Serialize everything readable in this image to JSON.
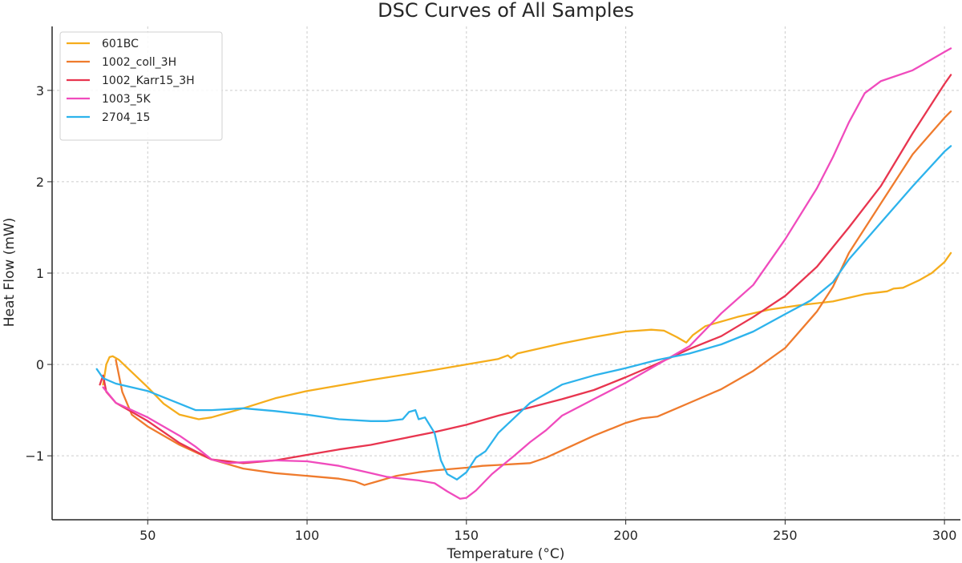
{
  "chart_data": {
    "type": "line",
    "title": "DSC Curves of All Samples",
    "xlabel": "Temperature (°C)",
    "ylabel": "Heat Flow (mW)",
    "xlim": [
      20,
      305
    ],
    "ylim": [
      -1.7,
      3.7
    ],
    "xticks": [
      50,
      100,
      150,
      200,
      250,
      300
    ],
    "yticks": [
      -1,
      0,
      1,
      2,
      3
    ],
    "ytick_labels": [
      "−1",
      "0",
      "1",
      "2",
      "3"
    ],
    "grid": true,
    "legend_position": "top-left",
    "series": [
      {
        "name": "601BC",
        "color": "#f5ad1c",
        "points": [
          [
            36,
            -0.22
          ],
          [
            37,
            0.0
          ],
          [
            38,
            0.08
          ],
          [
            39,
            0.09
          ],
          [
            41,
            0.05
          ],
          [
            44,
            -0.05
          ],
          [
            50,
            -0.25
          ],
          [
            55,
            -0.43
          ],
          [
            60,
            -0.55
          ],
          [
            66,
            -0.6
          ],
          [
            70,
            -0.58
          ],
          [
            75,
            -0.53
          ],
          [
            80,
            -0.48
          ],
          [
            90,
            -0.37
          ],
          [
            100,
            -0.29
          ],
          [
            120,
            -0.17
          ],
          [
            140,
            -0.06
          ],
          [
            160,
            0.06
          ],
          [
            163,
            0.1
          ],
          [
            164,
            0.07
          ],
          [
            166,
            0.12
          ],
          [
            180,
            0.23
          ],
          [
            190,
            0.3
          ],
          [
            200,
            0.36
          ],
          [
            208,
            0.38
          ],
          [
            212,
            0.37
          ],
          [
            216,
            0.3
          ],
          [
            219,
            0.24
          ],
          [
            221,
            0.32
          ],
          [
            225,
            0.42
          ],
          [
            235,
            0.52
          ],
          [
            245,
            0.6
          ],
          [
            255,
            0.65
          ],
          [
            265,
            0.69
          ],
          [
            275,
            0.77
          ],
          [
            282,
            0.8
          ],
          [
            284,
            0.83
          ],
          [
            287,
            0.84
          ],
          [
            292,
            0.92
          ],
          [
            296,
            1.0
          ],
          [
            300,
            1.12
          ],
          [
            302,
            1.22
          ]
        ]
      },
      {
        "name": "1002_coll_3H",
        "color": "#ef7b2d",
        "points": [
          [
            40,
            0.05
          ],
          [
            42,
            -0.3
          ],
          [
            45,
            -0.55
          ],
          [
            50,
            -0.68
          ],
          [
            60,
            -0.88
          ],
          [
            70,
            -1.04
          ],
          [
            80,
            -1.14
          ],
          [
            90,
            -1.19
          ],
          [
            100,
            -1.22
          ],
          [
            110,
            -1.25
          ],
          [
            115,
            -1.28
          ],
          [
            118,
            -1.32
          ],
          [
            122,
            -1.28
          ],
          [
            128,
            -1.22
          ],
          [
            135,
            -1.18
          ],
          [
            140,
            -1.16
          ],
          [
            150,
            -1.13
          ],
          [
            155,
            -1.11
          ],
          [
            160,
            -1.1
          ],
          [
            170,
            -1.08
          ],
          [
            175,
            -1.02
          ],
          [
            180,
            -0.94
          ],
          [
            190,
            -0.78
          ],
          [
            200,
            -0.64
          ],
          [
            205,
            -0.59
          ],
          [
            210,
            -0.57
          ],
          [
            220,
            -0.42
          ],
          [
            230,
            -0.27
          ],
          [
            240,
            -0.07
          ],
          [
            250,
            0.18
          ],
          [
            260,
            0.58
          ],
          [
            265,
            0.85
          ],
          [
            270,
            1.22
          ],
          [
            280,
            1.76
          ],
          [
            290,
            2.3
          ],
          [
            300,
            2.7
          ],
          [
            302,
            2.77
          ]
        ]
      },
      {
        "name": "1002_Karr15_3H",
        "color": "#e8354f",
        "points": [
          [
            35,
            -0.22
          ],
          [
            36,
            -0.12
          ],
          [
            37,
            -0.3
          ],
          [
            40,
            -0.42
          ],
          [
            50,
            -0.62
          ],
          [
            60,
            -0.86
          ],
          [
            70,
            -1.04
          ],
          [
            80,
            -1.08
          ],
          [
            90,
            -1.05
          ],
          [
            100,
            -0.99
          ],
          [
            110,
            -0.93
          ],
          [
            120,
            -0.88
          ],
          [
            130,
            -0.81
          ],
          [
            140,
            -0.74
          ],
          [
            150,
            -0.66
          ],
          [
            160,
            -0.56
          ],
          [
            170,
            -0.47
          ],
          [
            180,
            -0.38
          ],
          [
            190,
            -0.28
          ],
          [
            200,
            -0.14
          ],
          [
            210,
            0.01
          ],
          [
            220,
            0.17
          ],
          [
            230,
            0.31
          ],
          [
            240,
            0.52
          ],
          [
            250,
            0.75
          ],
          [
            260,
            1.07
          ],
          [
            270,
            1.5
          ],
          [
            280,
            1.95
          ],
          [
            290,
            2.53
          ],
          [
            300,
            3.07
          ],
          [
            302,
            3.17
          ]
        ]
      },
      {
        "name": "1003_5K",
        "color": "#f04bbd",
        "points": [
          [
            36,
            -0.25
          ],
          [
            40,
            -0.42
          ],
          [
            50,
            -0.58
          ],
          [
            60,
            -0.78
          ],
          [
            65,
            -0.9
          ],
          [
            70,
            -1.04
          ],
          [
            75,
            -1.08
          ],
          [
            80,
            -1.07
          ],
          [
            90,
            -1.05
          ],
          [
            100,
            -1.06
          ],
          [
            110,
            -1.11
          ],
          [
            120,
            -1.19
          ],
          [
            125,
            -1.23
          ],
          [
            130,
            -1.25
          ],
          [
            135,
            -1.27
          ],
          [
            140,
            -1.3
          ],
          [
            144,
            -1.39
          ],
          [
            148,
            -1.47
          ],
          [
            150,
            -1.46
          ],
          [
            153,
            -1.38
          ],
          [
            158,
            -1.2
          ],
          [
            165,
            -1.0
          ],
          [
            170,
            -0.85
          ],
          [
            175,
            -0.72
          ],
          [
            180,
            -0.56
          ],
          [
            190,
            -0.38
          ],
          [
            200,
            -0.2
          ],
          [
            210,
            0.0
          ],
          [
            220,
            0.2
          ],
          [
            230,
            0.56
          ],
          [
            240,
            0.87
          ],
          [
            250,
            1.37
          ],
          [
            260,
            1.93
          ],
          [
            265,
            2.27
          ],
          [
            270,
            2.65
          ],
          [
            275,
            2.97
          ],
          [
            280,
            3.1
          ],
          [
            290,
            3.22
          ],
          [
            300,
            3.42
          ],
          [
            302,
            3.46
          ]
        ]
      },
      {
        "name": "2704_15",
        "color": "#2db3ec",
        "points": [
          [
            34,
            -0.05
          ],
          [
            36,
            -0.15
          ],
          [
            40,
            -0.21
          ],
          [
            50,
            -0.29
          ],
          [
            60,
            -0.43
          ],
          [
            65,
            -0.5
          ],
          [
            70,
            -0.5
          ],
          [
            80,
            -0.48
          ],
          [
            90,
            -0.51
          ],
          [
            100,
            -0.55
          ],
          [
            110,
            -0.6
          ],
          [
            120,
            -0.62
          ],
          [
            125,
            -0.62
          ],
          [
            130,
            -0.6
          ],
          [
            132,
            -0.52
          ],
          [
            134,
            -0.5
          ],
          [
            135,
            -0.6
          ],
          [
            137,
            -0.58
          ],
          [
            140,
            -0.75
          ],
          [
            142,
            -1.05
          ],
          [
            144,
            -1.2
          ],
          [
            147,
            -1.26
          ],
          [
            150,
            -1.18
          ],
          [
            153,
            -1.02
          ],
          [
            156,
            -0.95
          ],
          [
            160,
            -0.75
          ],
          [
            170,
            -0.42
          ],
          [
            180,
            -0.22
          ],
          [
            190,
            -0.12
          ],
          [
            200,
            -0.04
          ],
          [
            210,
            0.05
          ],
          [
            220,
            0.12
          ],
          [
            230,
            0.22
          ],
          [
            240,
            0.36
          ],
          [
            250,
            0.55
          ],
          [
            258,
            0.7
          ],
          [
            265,
            0.9
          ],
          [
            270,
            1.15
          ],
          [
            280,
            1.55
          ],
          [
            290,
            1.95
          ],
          [
            300,
            2.33
          ],
          [
            302,
            2.39
          ]
        ]
      }
    ]
  }
}
